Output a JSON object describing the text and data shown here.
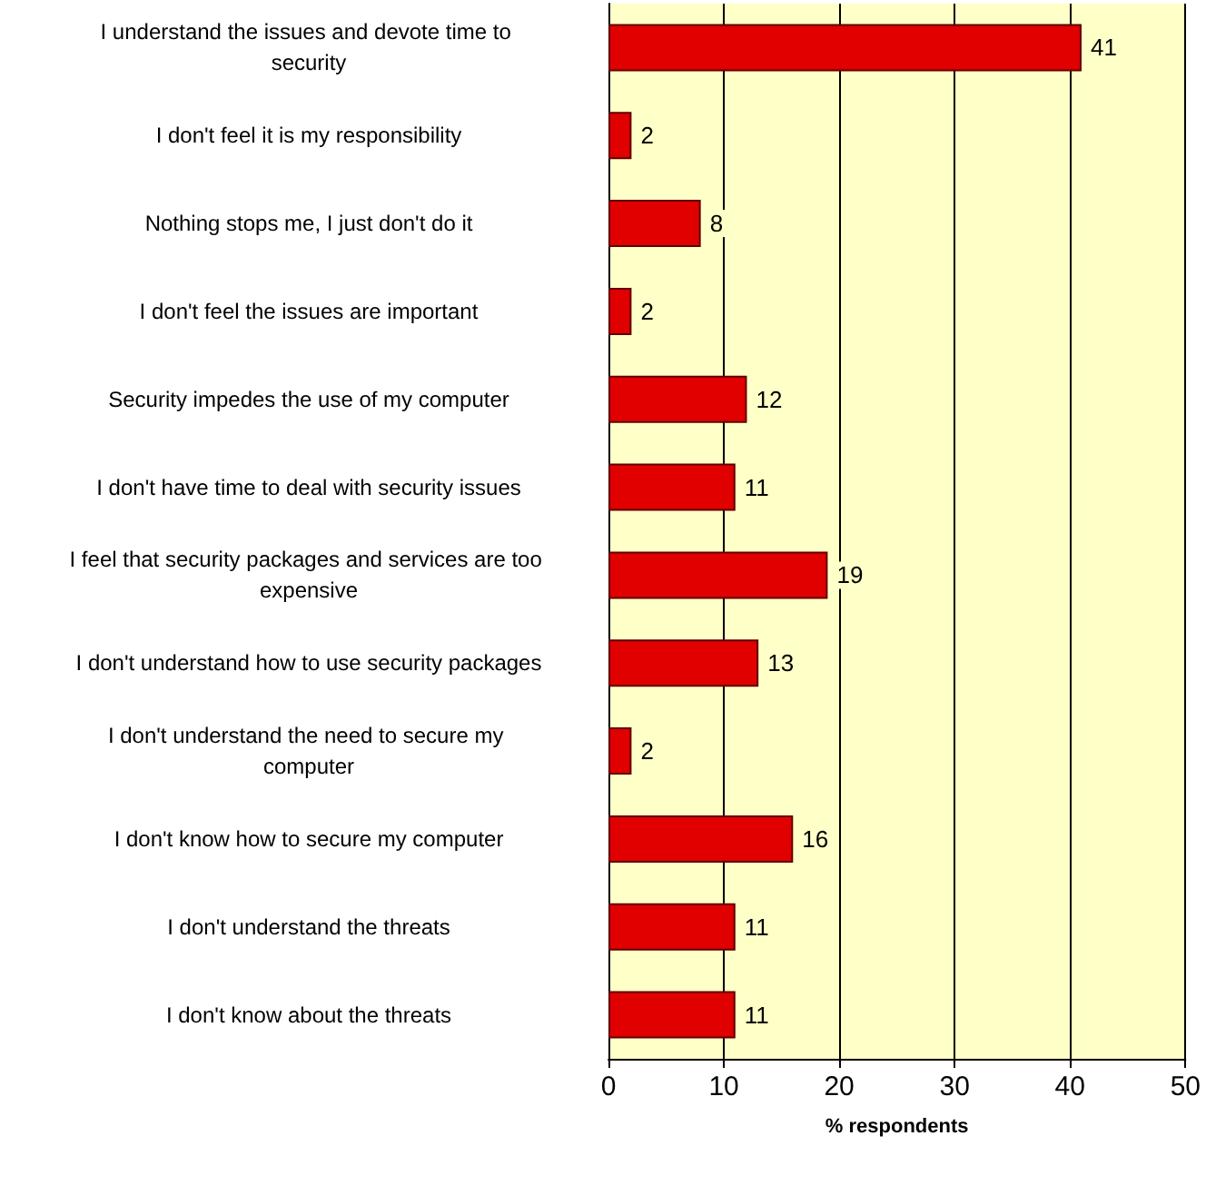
{
  "chart_data": {
    "type": "bar",
    "orientation": "horizontal",
    "xlabel": "% respondents",
    "categories": [
      "I understand the issues and devote time to security",
      "I don't feel it is my responsibility",
      "Nothing stops me, I just don't do it",
      "I don't feel the issues are important",
      "Security impedes the use of my computer",
      "I don't have time to deal with security issues",
      "I feel that security packages and services are too expensive",
      "I don't understand how to use security packages",
      "I don't understand the need to secure my computer",
      "I don't know how to secure my computer",
      "I don't understand the threats",
      "I don't know about the threats"
    ],
    "values": [
      41,
      2,
      8,
      2,
      12,
      11,
      19,
      13,
      2,
      16,
      11,
      11
    ],
    "color": "#e00000",
    "xlim": [
      0,
      50
    ],
    "xticks": [
      0,
      10,
      20,
      30,
      40,
      50
    ],
    "grid": "x",
    "data_labels": true
  }
}
